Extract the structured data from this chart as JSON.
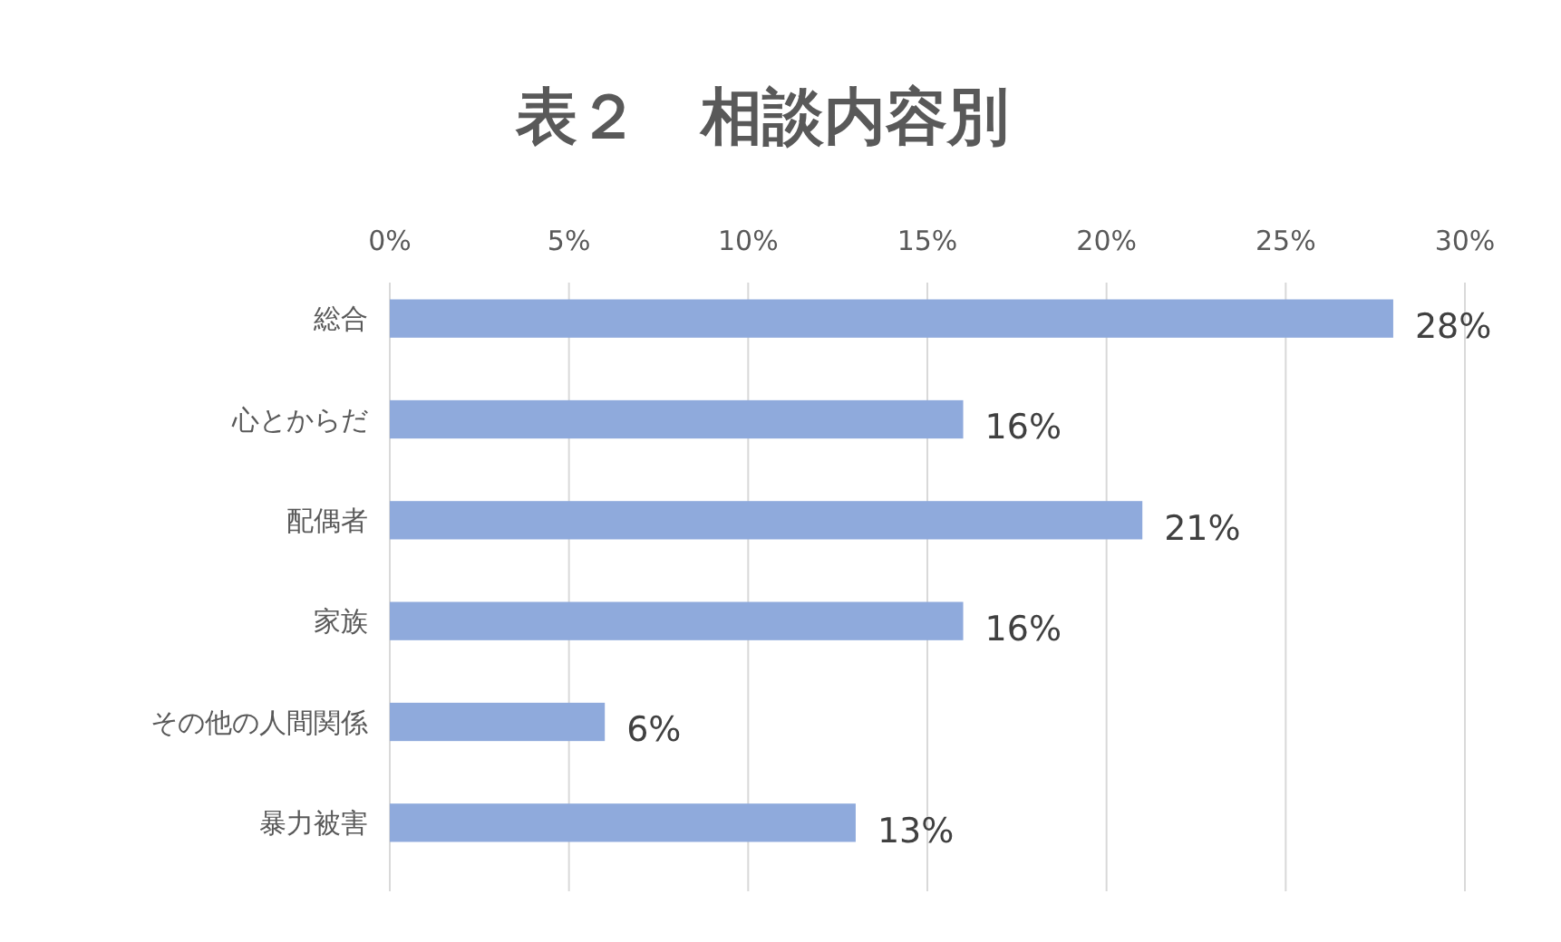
{
  "chart_data": {
    "type": "bar",
    "orientation": "horizontal",
    "title": "表２　相談内容別",
    "categories": [
      "総合",
      "心とからだ",
      "配偶者",
      "家族",
      "その他の人間関係",
      "暴力被害"
    ],
    "values": [
      28,
      16,
      21,
      16,
      6,
      13
    ],
    "value_labels": [
      "28%",
      "16%",
      "21%",
      "16%",
      "6%",
      "13%"
    ],
    "color": "#8faadc",
    "xlim": [
      0,
      30
    ],
    "xticks": [
      {
        "value": 0,
        "label": "0%"
      },
      {
        "value": 5,
        "label": "5%"
      },
      {
        "value": 10,
        "label": "10%"
      },
      {
        "value": 15,
        "label": "15%"
      },
      {
        "value": 20,
        "label": "20%"
      },
      {
        "value": 25,
        "label": "25%"
      },
      {
        "value": 30,
        "label": "30%"
      }
    ],
    "grid": "x"
  }
}
